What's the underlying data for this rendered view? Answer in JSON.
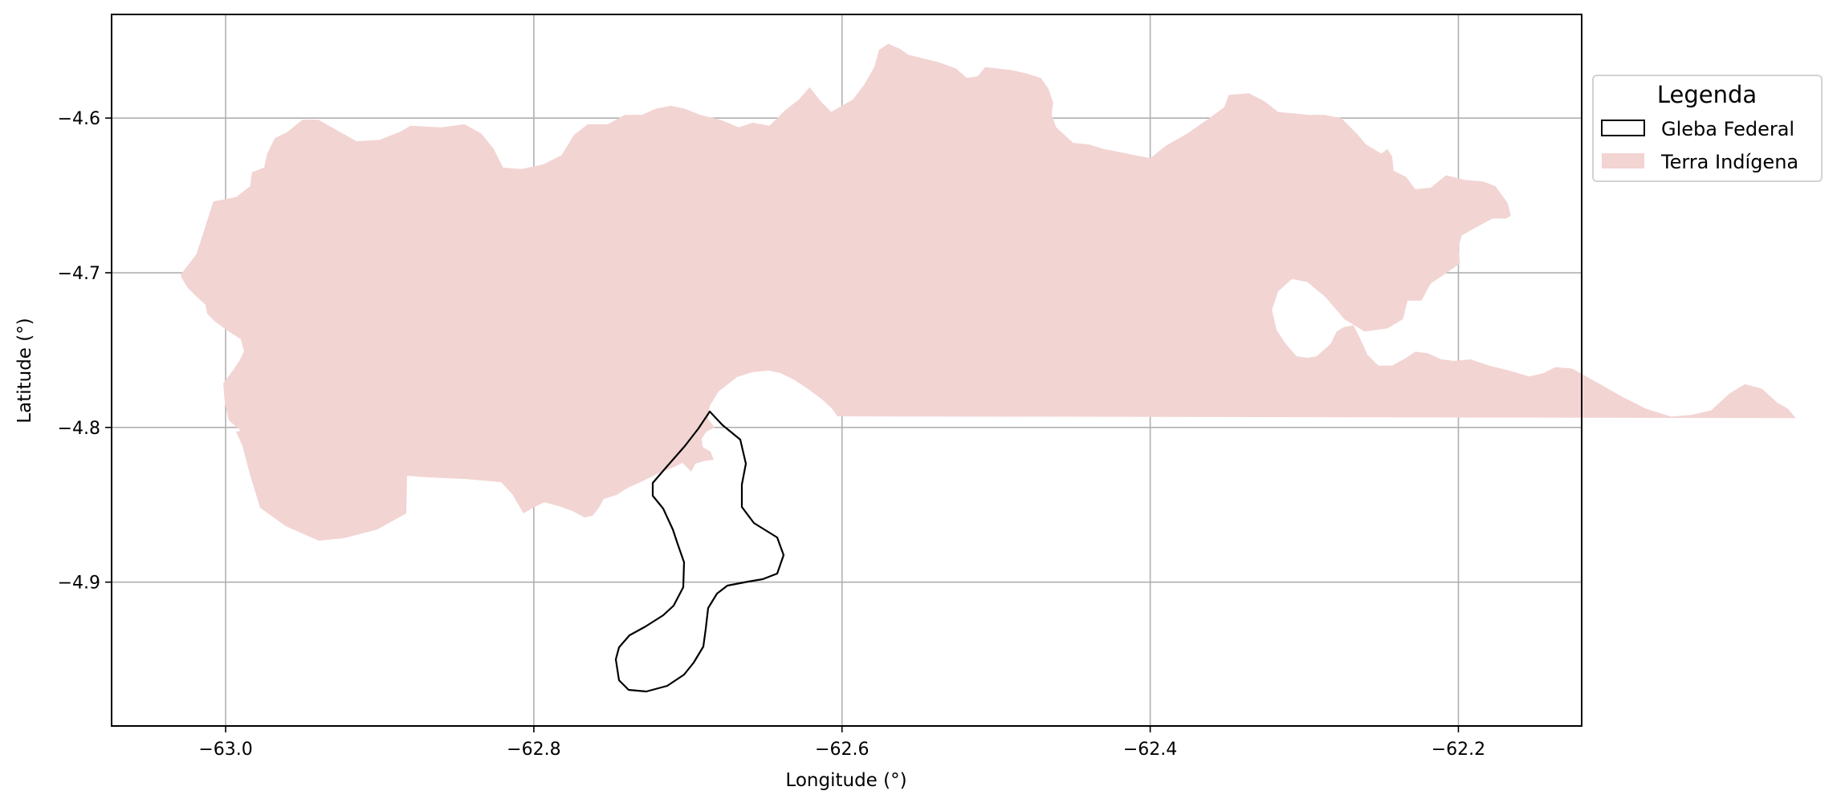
{
  "chart_data": {
    "type": "map",
    "xlabel": "Longitude (°)",
    "ylabel": "Latitude (°)",
    "xlim": [
      -63.074,
      -62.12
    ],
    "ylim": [
      -4.993,
      -4.533
    ],
    "grid": true,
    "x_ticks": [
      {
        "value": -63.0,
        "label": "−63.0"
      },
      {
        "value": -62.8,
        "label": "−62.8"
      },
      {
        "value": -62.6,
        "label": "−62.6"
      },
      {
        "value": -62.4,
        "label": "−62.4"
      },
      {
        "value": -62.2,
        "label": "−62.2"
      }
    ],
    "y_ticks": [
      {
        "value": -4.6,
        "label": "−4.6"
      },
      {
        "value": -4.7,
        "label": "−4.7"
      },
      {
        "value": -4.8,
        "label": "−4.8"
      },
      {
        "value": -4.9,
        "label": "−4.9"
      }
    ],
    "legend": {
      "title": "Legenda",
      "position": "outside-right-top",
      "entries": [
        {
          "key": "gleba",
          "label": "Gleba Federal"
        },
        {
          "key": "terra",
          "label": "Terra Indígena"
        }
      ]
    },
    "layers": [
      {
        "key": "terra",
        "name": "Terra Indígena",
        "fill": "#f2d4d3",
        "stroke": "none",
        "coordinates": [
          [
            -63.029,
            -4.701
          ],
          [
            -63.019,
            -4.688
          ],
          [
            -63.008,
            -4.654
          ],
          [
            -62.993,
            -4.651
          ],
          [
            -62.984,
            -4.644
          ],
          [
            -62.983,
            -4.635
          ],
          [
            -62.975,
            -4.632
          ],
          [
            -62.973,
            -4.623
          ],
          [
            -62.968,
            -4.613
          ],
          [
            -62.96,
            -4.609
          ],
          [
            -62.95,
            -4.601
          ],
          [
            -62.94,
            -4.601
          ],
          [
            -62.915,
            -4.615
          ],
          [
            -62.9,
            -4.614
          ],
          [
            -62.887,
            -4.609
          ],
          [
            -62.88,
            -4.605
          ],
          [
            -62.86,
            -4.606
          ],
          [
            -62.845,
            -4.604
          ],
          [
            -62.834,
            -4.61
          ],
          [
            -62.826,
            -4.62
          ],
          [
            -62.82,
            -4.632
          ],
          [
            -62.808,
            -4.633
          ],
          [
            -62.794,
            -4.63
          ],
          [
            -62.782,
            -4.624
          ],
          [
            -62.774,
            -4.611
          ],
          [
            -62.765,
            -4.604
          ],
          [
            -62.752,
            -4.604
          ],
          [
            -62.741,
            -4.598
          ],
          [
            -62.73,
            -4.598
          ],
          [
            -62.721,
            -4.594
          ],
          [
            -62.711,
            -4.592
          ],
          [
            -62.702,
            -4.594
          ],
          [
            -62.692,
            -4.598
          ],
          [
            -62.679,
            -4.601
          ],
          [
            -62.667,
            -4.606
          ],
          [
            -62.658,
            -4.603
          ],
          [
            -62.647,
            -4.605
          ],
          [
            -62.637,
            -4.595
          ],
          [
            -62.628,
            -4.588
          ],
          [
            -62.621,
            -4.58
          ],
          [
            -62.614,
            -4.589
          ],
          [
            -62.607,
            -4.596
          ],
          [
            -62.6,
            -4.592
          ],
          [
            -62.593,
            -4.588
          ],
          [
            -62.586,
            -4.579
          ],
          [
            -62.579,
            -4.567
          ],
          [
            -62.576,
            -4.556
          ],
          [
            -62.57,
            -4.552
          ],
          [
            -62.563,
            -4.555
          ],
          [
            -62.557,
            -4.559
          ],
          [
            -62.549,
            -4.561
          ],
          [
            -62.537,
            -4.564
          ],
          [
            -62.526,
            -4.568
          ],
          [
            -62.519,
            -4.574
          ],
          [
            -62.512,
            -4.573
          ],
          [
            -62.507,
            -4.567
          ],
          [
            -62.499,
            -4.568
          ],
          [
            -62.49,
            -4.569
          ],
          [
            -62.481,
            -4.571
          ],
          [
            -62.471,
            -4.574
          ],
          [
            -62.466,
            -4.581
          ],
          [
            -62.463,
            -4.59
          ],
          [
            -62.464,
            -4.598
          ],
          [
            -62.461,
            -4.606
          ],
          [
            -62.45,
            -4.616
          ],
          [
            -62.44,
            -4.617
          ],
          [
            -62.43,
            -4.62
          ],
          [
            -62.42,
            -4.622
          ],
          [
            -62.41,
            -4.624
          ],
          [
            -62.4,
            -4.626
          ],
          [
            -62.39,
            -4.618
          ],
          [
            -62.376,
            -4.61
          ],
          [
            -62.363,
            -4.601
          ],
          [
            -62.352,
            -4.593
          ],
          [
            -62.349,
            -4.585
          ],
          [
            -62.336,
            -4.584
          ],
          [
            -62.326,
            -4.589
          ],
          [
            -62.317,
            -4.596
          ],
          [
            -62.307,
            -4.597
          ],
          [
            -62.297,
            -4.598
          ],
          [
            -62.287,
            -4.598
          ],
          [
            -62.276,
            -4.6
          ],
          [
            -62.266,
            -4.61
          ],
          [
            -62.26,
            -4.617
          ],
          [
            -62.25,
            -4.623
          ],
          [
            -62.246,
            -4.62
          ],
          [
            -62.243,
            -4.625
          ],
          [
            -62.242,
            -4.634
          ],
          [
            -62.234,
            -4.638
          ],
          [
            -62.228,
            -4.646
          ],
          [
            -62.218,
            -4.645
          ],
          [
            -62.208,
            -4.637
          ],
          [
            -62.196,
            -4.64
          ],
          [
            -62.184,
            -4.641
          ],
          [
            -62.176,
            -4.644
          ],
          [
            -62.168,
            -4.655
          ],
          [
            -62.166,
            -4.663
          ],
          [
            -62.169,
            -4.665
          ],
          [
            -62.178,
            -4.665
          ],
          [
            -62.191,
            -4.672
          ],
          [
            -62.198,
            -4.676
          ],
          [
            -62.2,
            -4.684
          ],
          [
            -62.199,
            -4.694
          ],
          [
            -62.209,
            -4.701
          ],
          [
            -62.218,
            -4.707
          ],
          [
            -62.224,
            -4.718
          ],
          [
            -62.233,
            -4.718
          ],
          [
            -62.236,
            -4.73
          ],
          [
            -62.246,
            -4.736
          ],
          [
            -62.261,
            -4.738
          ],
          [
            -62.274,
            -4.73
          ],
          [
            -62.286,
            -4.716
          ],
          [
            -62.298,
            -4.706
          ],
          [
            -62.308,
            -4.704
          ],
          [
            -62.317,
            -4.712
          ],
          [
            -62.321,
            -4.724
          ],
          [
            -62.318,
            -4.737
          ],
          [
            -62.312,
            -4.746
          ],
          [
            -62.305,
            -4.754
          ],
          [
            -62.298,
            -4.755
          ],
          [
            -62.292,
            -4.754
          ],
          [
            -62.283,
            -4.746
          ],
          [
            -62.279,
            -4.738
          ],
          [
            -62.274,
            -4.735
          ],
          [
            -62.268,
            -4.734
          ],
          [
            -62.264,
            -4.742
          ],
          [
            -62.259,
            -4.753
          ],
          [
            -62.252,
            -4.76
          ],
          [
            -62.243,
            -4.76
          ],
          [
            -62.234,
            -4.755
          ],
          [
            -62.228,
            -4.751
          ],
          [
            -62.22,
            -4.752
          ],
          [
            -62.211,
            -4.756
          ],
          [
            -62.203,
            -4.757
          ],
          [
            -62.192,
            -4.756
          ],
          [
            -62.18,
            -4.76
          ],
          [
            -62.168,
            -4.763
          ],
          [
            -62.154,
            -4.767
          ],
          [
            -62.145,
            -4.765
          ],
          [
            -62.137,
            -4.761
          ],
          [
            -62.126,
            -4.762
          ],
          [
            -62.11,
            -4.771
          ],
          [
            -62.094,
            -4.78
          ],
          [
            -62.078,
            -4.788
          ],
          [
            -62.062,
            -4.793
          ],
          [
            -62.049,
            -4.792
          ],
          [
            -62.036,
            -4.789
          ],
          [
            -62.024,
            -4.778
          ],
          [
            -62.014,
            -4.772
          ],
          [
            -62.003,
            -4.775
          ],
          [
            -61.993,
            -4.784
          ],
          [
            -61.986,
            -4.788
          ],
          [
            -61.981,
            -4.794
          ]
        ]
      }
    ]
  }
}
